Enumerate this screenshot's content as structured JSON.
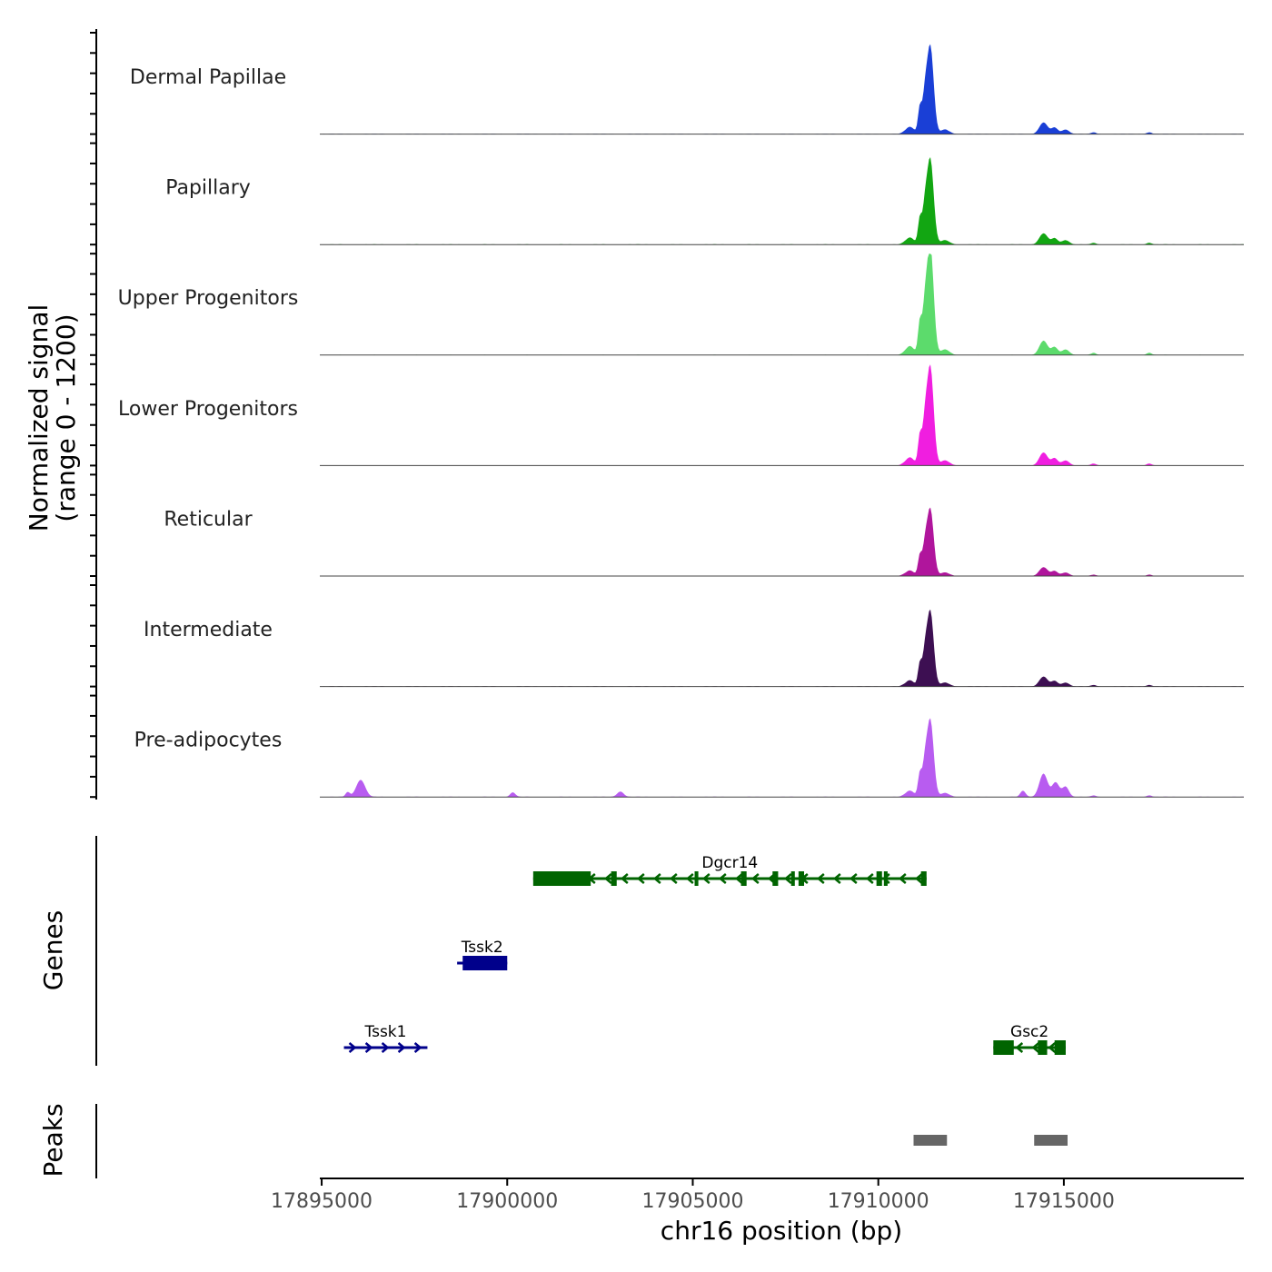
{
  "chart_data": {
    "type": "area",
    "title": "",
    "chromosome": "chr16",
    "xlabel": "chr16 position (bp)",
    "ylabel": [
      "Normalized signal",
      "(range 0 - 1200)"
    ],
    "xlim": [
      17894950,
      17919850
    ],
    "ylim": [
      0,
      1200
    ],
    "x_ticks": [
      17895000,
      17900000,
      17905000,
      17910000,
      17915000
    ],
    "x_tick_labels": [
      "17895000",
      "17900000",
      "17905000",
      "17910000",
      "17915000"
    ],
    "signal_peaks": [
      {
        "center": 17911400,
        "width": 90,
        "rel": 1.0
      },
      {
        "center": 17911250,
        "width": 60,
        "rel": 0.35
      },
      {
        "center": 17911120,
        "width": 50,
        "rel": 0.3
      },
      {
        "center": 17910850,
        "width": 120,
        "rel": 0.08
      },
      {
        "center": 17911800,
        "width": 120,
        "rel": 0.05
      },
      {
        "center": 17914450,
        "width": 110,
        "rel": 0.13
      },
      {
        "center": 17914750,
        "width": 90,
        "rel": 0.07
      },
      {
        "center": 17915050,
        "width": 100,
        "rel": 0.05
      },
      {
        "center": 17915800,
        "width": 60,
        "rel": 0.02
      },
      {
        "center": 17917300,
        "width": 70,
        "rel": 0.02
      }
    ],
    "tracks": [
      {
        "name": "Dermal Papillae",
        "color": "#1a3fd6",
        "max": 1050
      },
      {
        "name": "Papillary",
        "color": "#12a612",
        "max": 1020
      },
      {
        "name": "Upper Progenitors",
        "color": "#5cdb6c",
        "max": 1300
      },
      {
        "name": "Lower Progenitors",
        "color": "#f01ee0",
        "max": 1180
      },
      {
        "name": "Reticular",
        "color": "#b0159c",
        "max": 800
      },
      {
        "name": "Intermediate",
        "color": "#3d0f52",
        "max": 900
      },
      {
        "name": "Pre-adipocytes",
        "color": "#b85cf0",
        "max": 920,
        "extra_peaks": [
          {
            "center": 17896050,
            "width": 120,
            "rel": 0.22
          },
          {
            "center": 17895700,
            "width": 60,
            "rel": 0.06
          },
          {
            "center": 17900150,
            "width": 70,
            "rel": 0.06
          },
          {
            "center": 17903050,
            "width": 90,
            "rel": 0.07
          },
          {
            "center": 17914450,
            "width": 110,
            "rel": 0.17
          },
          {
            "center": 17913900,
            "width": 70,
            "rel": 0.08
          },
          {
            "center": 17914800,
            "width": 100,
            "rel": 0.12
          },
          {
            "center": 17915050,
            "width": 80,
            "rel": 0.08
          }
        ]
      }
    ],
    "genes_title": "Genes",
    "genes": [
      {
        "name": "Dgcr14",
        "strand": "-",
        "color": "#006400",
        "start": 17900700,
        "end": 17911300,
        "row": 0,
        "exons": [
          [
            17900700,
            17902250
          ],
          [
            17902800,
            17902950
          ],
          [
            17905050,
            17905150
          ],
          [
            17906300,
            17906450
          ],
          [
            17907150,
            17907300
          ],
          [
            17907650,
            17907750
          ],
          [
            17907850,
            17908000
          ],
          [
            17909950,
            17910100
          ],
          [
            17910150,
            17910250
          ],
          [
            17911150,
            17911300
          ]
        ]
      },
      {
        "name": "Tssk2",
        "strand": "-",
        "color": "#00008b",
        "start": 17898650,
        "end": 17900000,
        "row": 1,
        "exons": [
          [
            17898800,
            17900000
          ]
        ]
      },
      {
        "name": "Tssk1",
        "strand": "+",
        "color": "#00008b",
        "start": 17895600,
        "end": 17897850,
        "row": 2,
        "exons": []
      },
      {
        "name": "Gsc2",
        "strand": "-",
        "color": "#006400",
        "start": 17913100,
        "end": 17915050,
        "row": 2,
        "exons": [
          [
            17913100,
            17913650
          ],
          [
            17914300,
            17914550
          ],
          [
            17914750,
            17915050
          ]
        ]
      }
    ],
    "peaks_title": "Peaks",
    "peaks": [
      {
        "start": 17910950,
        "end": 17911850,
        "color": "#666666"
      },
      {
        "start": 17914200,
        "end": 17915100,
        "color": "#666666"
      }
    ]
  }
}
